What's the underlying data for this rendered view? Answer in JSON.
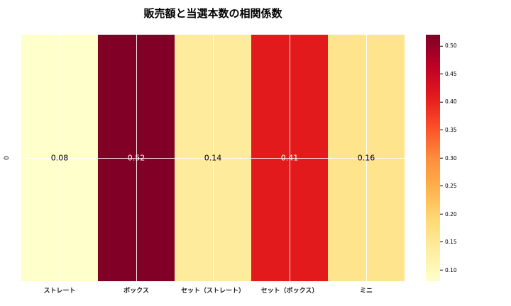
{
  "figure": {
    "background": "#ffffff"
  },
  "chart_data": {
    "type": "heatmap",
    "title": "販売額と当選本数の相関係数",
    "row_labels": [
      "0"
    ],
    "categories": [
      "ストレート",
      "ボックス",
      "セット（ストレート）",
      "セット（ボックス）",
      "ミニ"
    ],
    "values": [
      0.08,
      0.52,
      0.14,
      0.41,
      0.16
    ],
    "value_labels": [
      "0.08",
      "0.52",
      "0.14",
      "0.41",
      "0.16"
    ],
    "cell_colors": [
      "#ffffcc",
      "#800026",
      "#ffeb9c",
      "#e31a1c",
      "#fee48d"
    ],
    "text_colors": [
      "#000000",
      "#ffffff",
      "#000000",
      "#ffffff",
      "#000000"
    ],
    "colormap": "YlOrRd",
    "vmin": 0.08,
    "vmax": 0.52,
    "grid": true,
    "gridline_color": "#ffffff",
    "legend_position": "right-colorbar",
    "colorbar_tick_labels": [
      "0.10",
      "0.15",
      "0.20",
      "0.25",
      "0.30",
      "0.35",
      "0.40",
      "0.45",
      "0.50"
    ],
    "colorbar_tick_values": [
      0.1,
      0.15,
      0.2,
      0.25,
      0.3,
      0.35,
      0.4,
      0.45,
      0.5
    ],
    "colorbar_gradient_stops": [
      {
        "t": 0.0,
        "color": "#ffffcc"
      },
      {
        "t": 0.125,
        "color": "#ffeda0"
      },
      {
        "t": 0.25,
        "color": "#fed976"
      },
      {
        "t": 0.375,
        "color": "#feb24c"
      },
      {
        "t": 0.5,
        "color": "#fd8d3c"
      },
      {
        "t": 0.625,
        "color": "#fc4e2a"
      },
      {
        "t": 0.75,
        "color": "#e31a1c"
      },
      {
        "t": 0.875,
        "color": "#bd0026"
      },
      {
        "t": 1.0,
        "color": "#800026"
      }
    ]
  }
}
